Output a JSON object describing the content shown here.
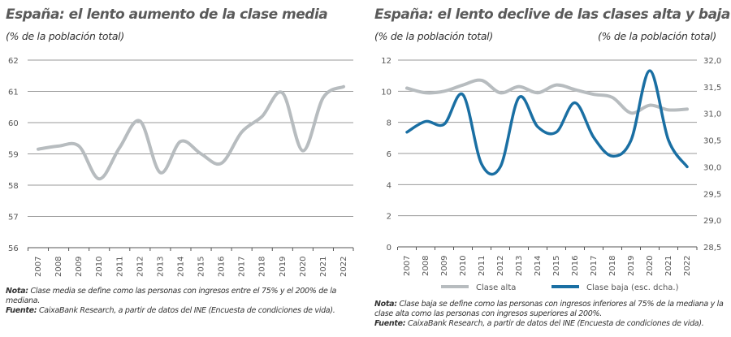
{
  "chart_data": [
    {
      "type": "line",
      "title": "España: el lento aumento de la clase media",
      "subtitle": "(% de la población total)",
      "x": [
        "2007",
        "2008",
        "2009",
        "2010",
        "2011",
        "2012",
        "2013",
        "2014",
        "2015",
        "2016",
        "2017",
        "2018",
        "2019",
        "2020",
        "2021",
        "2022"
      ],
      "yticks": [
        "62",
        "61",
        "60",
        "59",
        "58",
        "57",
        "56"
      ],
      "ylim": [
        56,
        62
      ],
      "grid": true,
      "series": [
        {
          "values": [
            59.15,
            59.25,
            59.25,
            58.2,
            59.2,
            60.05,
            58.4,
            59.4,
            59.0,
            58.7,
            59.7,
            60.2,
            60.95,
            59.1,
            60.8,
            61.15
          ],
          "color": "#b7bcbf"
        }
      ],
      "note_label": "Nota:",
      "note": "Clase media se define como las personas con ingresos entre el 75% y el 200% de la mediana.",
      "source_label": "Fuente:",
      "source": "CaixaBank Research, a partir de datos del INE (Encuesta de condiciones de vida)."
    },
    {
      "type": "line",
      "title": "España: el lento declive de las clases alta y baja",
      "subtitle_left": "(% de la población total)",
      "subtitle_right": "(% de la población total)",
      "x": [
        "2007",
        "2008",
        "2009",
        "2010",
        "2011",
        "2012",
        "2013",
        "2014",
        "2015",
        "2016",
        "2017",
        "2018",
        "2019",
        "2020",
        "2021",
        "2022"
      ],
      "yticks_left": [
        "12",
        "10",
        "8",
        "6",
        "4",
        "2",
        "0"
      ],
      "ylim_left": [
        0,
        12
      ],
      "yticks_right": [
        "32,0",
        "31,5",
        "31,0",
        "30,5",
        "30,0",
        "29,5",
        "29,0",
        "28,5"
      ],
      "ylim_right": [
        28.5,
        32
      ],
      "grid": true,
      "legend_position": "bottom",
      "series": [
        {
          "name": "Clase alta",
          "axis": "left",
          "color": "#b7bcbf",
          "values": [
            10.2,
            9.9,
            10.0,
            10.4,
            10.7,
            9.9,
            10.3,
            9.9,
            10.4,
            10.1,
            9.8,
            9.6,
            8.6,
            9.1,
            8.8,
            8.85
          ]
        },
        {
          "name": "Clase baja (esc. dcha.)",
          "axis": "right",
          "color": "#1a6fa3",
          "values": [
            30.65,
            30.85,
            30.8,
            31.35,
            30.05,
            30.0,
            31.3,
            30.75,
            30.65,
            31.2,
            30.55,
            30.2,
            30.5,
            31.8,
            30.5,
            30.0
          ]
        }
      ],
      "note_label": "Nota:",
      "note": "Clase baja se define como las personas con ingresos inferiores al 75% de la mediana y la clase alta como las personas con ingresos superiores al 200%.",
      "source_label": "Fuente:",
      "source": "CaixaBank Research, a partir de datos del INE (Encuesta de condiciones de vida)."
    }
  ]
}
